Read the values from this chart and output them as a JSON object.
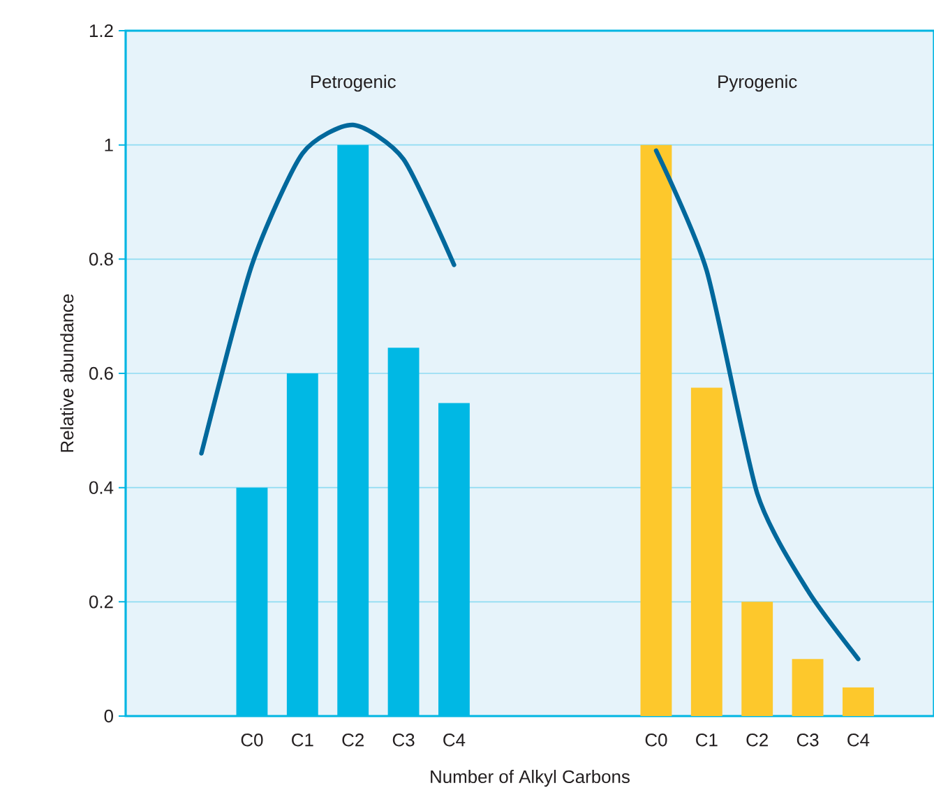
{
  "chart_data": {
    "type": "bar",
    "xlabel": "Number of Alkyl Carbons",
    "ylabel": "Relative abundance",
    "categories": [
      null,
      null,
      "C0",
      "C1",
      "C2",
      "C3",
      "C4",
      null,
      null,
      null,
      "C0",
      "C1",
      "C2",
      "C3",
      "C4",
      null
    ],
    "ylim": [
      0,
      1.2
    ],
    "yticks": [
      0,
      0.2,
      0.4,
      0.6,
      0.8,
      1,
      1.2
    ],
    "grid": "y",
    "series": [
      {
        "color": "#00b8e4",
        "values": [
          null,
          null,
          0.4,
          0.6,
          1.0,
          0.645,
          0.548,
          null,
          null,
          null,
          null,
          null,
          null,
          null,
          null,
          null
        ]
      },
      {
        "color": "#fdc82c",
        "values": [
          null,
          null,
          null,
          null,
          null,
          null,
          null,
          null,
          null,
          null,
          1.0,
          0.575,
          0.2,
          0.1,
          0.05,
          null
        ]
      },
      {
        "type": "line",
        "color": "#00689c",
        "values": [
          null,
          0.46,
          0.79,
          0.985,
          1.035,
          0.975,
          0.79,
          null,
          null,
          null,
          null,
          null,
          null,
          null,
          null,
          null
        ]
      },
      {
        "type": "line",
        "color": "#00689c",
        "values": [
          null,
          null,
          null,
          null,
          null,
          null,
          null,
          null,
          null,
          null,
          0.99,
          0.78,
          0.39,
          0.22,
          0.1,
          null
        ]
      }
    ],
    "annotations": [
      "Petrogenic",
      "Pyrogenic"
    ]
  }
}
